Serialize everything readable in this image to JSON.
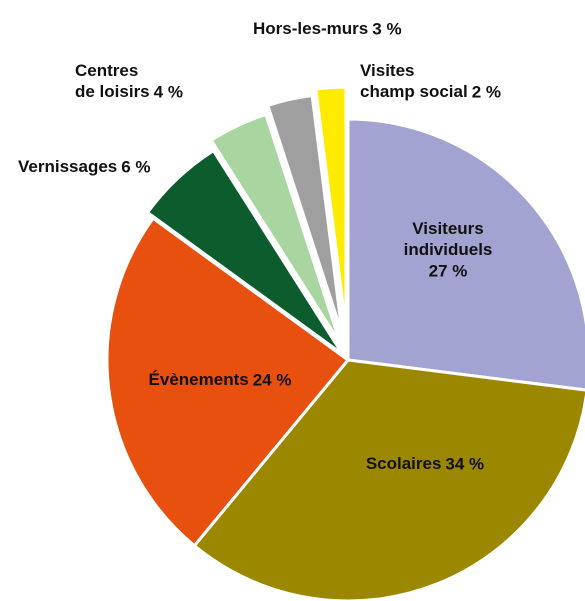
{
  "chart_data": {
    "type": "pie",
    "categories": [
      "Visiteurs individuels",
      "Scolaires",
      "Évènements",
      "Vernissages",
      "Centres de loisirs",
      "Hors-les-murs",
      "Visites champ social"
    ],
    "values": [
      27,
      34,
      24,
      6,
      4,
      3,
      2
    ],
    "value_labels": [
      "27 %",
      "34 %",
      "24 %",
      "6 %",
      "4 %",
      "3 %",
      "2 %"
    ],
    "colors": [
      "#a3a3d1",
      "#9c8800",
      "#e8500f",
      "#0d5c2e",
      "#a8d5a0",
      "#9f9f9f",
      "#ffeb00"
    ]
  }
}
